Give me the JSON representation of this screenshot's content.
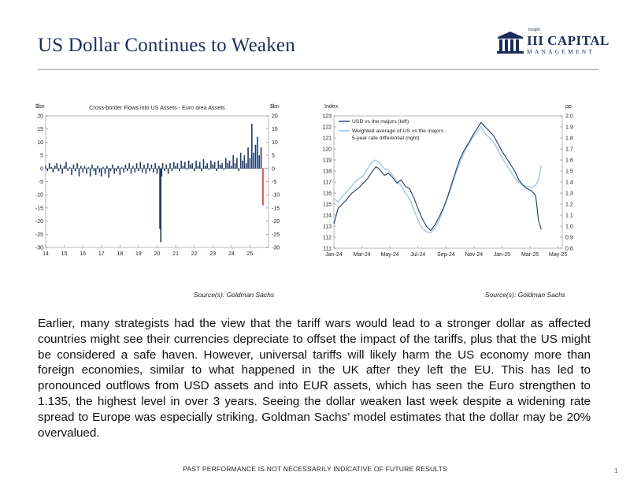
{
  "title": "US Dollar Continues to Weaken",
  "logo": {
    "main": "III CAPITAL",
    "sub": "MANAGEMENT",
    "tiny": "Insight"
  },
  "sources": [
    "Source(s): Goldman Sachs",
    "Source(s): Goldman Sachs"
  ],
  "body_text": "Earlier, many strategists had the view that the tariff wars would lead to a stronger dollar as affected countries might see their currencies depreciate to offset the impact of the tariffs, plus that the US might be considered a safe haven. However, universal tariffs will likely harm the US economy more than foreign economies, similar to what happened in the UK after they left the EU. This has led to pronounced outflows from USD assets and into EUR assets, which has seen the Euro strengthen to 1.135, the highest level in over 3 years. Seeing the dollar weaken last week despite a widening rate spread to Europe was especially striking.  Goldman Sachs’ model estimates that the dollar may be 20% overvalued.",
  "footer": "PAST PERFORMANCE IS NOT NECESSARILY INDICATIVE OF FUTURE RESULTS",
  "page_number": "1",
  "colors": {
    "navy": "#1a2d5a",
    "bar": "#1f3a68",
    "bar_negative_recent": "#e0302c",
    "usd_line": "#1f3a68",
    "rate_line": "#a9cdea"
  },
  "chart_data": [
    {
      "type": "bar",
      "title": "Cross-border Flows into US Assets - Euro area Assets",
      "ylabel_left": "$bn",
      "ylabel_right": "$bn",
      "ylim": [
        -30,
        20
      ],
      "yticks": [
        20,
        15,
        10,
        5,
        0,
        -5,
        -10,
        -15,
        -20,
        -25,
        -30
      ],
      "xlim": [
        14,
        26
      ],
      "xticks": [
        14,
        15,
        16,
        17,
        18,
        19,
        20,
        21,
        22,
        23,
        24,
        25
      ],
      "series": [
        {
          "name": "",
          "color": "#1f3a68",
          "points": [
            [
              14.0,
              1
            ],
            [
              14.1,
              -1
            ],
            [
              14.2,
              2
            ],
            [
              14.3,
              0.5
            ],
            [
              14.4,
              -1.5
            ],
            [
              14.5,
              1
            ],
            [
              14.6,
              2
            ],
            [
              14.7,
              -1
            ],
            [
              14.8,
              1.5
            ],
            [
              14.9,
              -2
            ],
            [
              15.0,
              1
            ],
            [
              15.1,
              2.5
            ],
            [
              15.2,
              -1
            ],
            [
              15.3,
              0.5
            ],
            [
              15.4,
              -2.5
            ],
            [
              15.5,
              1.5
            ],
            [
              15.6,
              -1
            ],
            [
              15.7,
              2
            ],
            [
              15.8,
              -3
            ],
            [
              15.9,
              1
            ],
            [
              16.0,
              -1.5
            ],
            [
              16.1,
              1
            ],
            [
              16.2,
              -2
            ],
            [
              16.3,
              0.5
            ],
            [
              16.4,
              -3
            ],
            [
              16.5,
              1.5
            ],
            [
              16.6,
              -1
            ],
            [
              16.7,
              -2.5
            ],
            [
              16.8,
              1
            ],
            [
              16.9,
              -1.5
            ],
            [
              17.0,
              -3
            ],
            [
              17.1,
              0.5
            ],
            [
              17.2,
              -2
            ],
            [
              17.3,
              1
            ],
            [
              17.4,
              -3.5
            ],
            [
              17.5,
              -1
            ],
            [
              17.6,
              1.5
            ],
            [
              17.7,
              -2
            ],
            [
              17.8,
              -1
            ],
            [
              17.9,
              1
            ],
            [
              18.0,
              -2.5
            ],
            [
              18.1,
              0.5
            ],
            [
              18.2,
              -1.5
            ],
            [
              18.3,
              1.5
            ],
            [
              18.4,
              -1
            ],
            [
              18.5,
              2
            ],
            [
              18.6,
              -2
            ],
            [
              18.7,
              1
            ],
            [
              18.8,
              -1.5
            ],
            [
              18.9,
              2
            ],
            [
              19.0,
              -1
            ],
            [
              19.1,
              2.5
            ],
            [
              19.2,
              -1.5
            ],
            [
              19.3,
              1.5
            ],
            [
              19.4,
              -2
            ],
            [
              19.5,
              2
            ],
            [
              19.6,
              -1
            ],
            [
              19.7,
              1.5
            ],
            [
              19.8,
              -1.5
            ],
            [
              19.9,
              2
            ],
            [
              20.0,
              -2
            ],
            [
              20.1,
              1
            ],
            [
              20.15,
              -23
            ],
            [
              20.2,
              -28
            ],
            [
              20.25,
              -3
            ],
            [
              20.3,
              2
            ],
            [
              20.4,
              -1
            ],
            [
              20.5,
              1.5
            ],
            [
              20.6,
              -2
            ],
            [
              20.7,
              2
            ],
            [
              20.8,
              -1
            ],
            [
              20.9,
              2.5
            ],
            [
              21.0,
              1
            ],
            [
              21.1,
              2
            ],
            [
              21.2,
              -1
            ],
            [
              21.3,
              3
            ],
            [
              21.4,
              1
            ],
            [
              21.5,
              2.5
            ],
            [
              21.6,
              -0.5
            ],
            [
              21.7,
              3
            ],
            [
              21.8,
              1.5
            ],
            [
              21.9,
              2
            ],
            [
              22.0,
              -1
            ],
            [
              22.1,
              3
            ],
            [
              22.2,
              1
            ],
            [
              22.3,
              2.5
            ],
            [
              22.4,
              -1
            ],
            [
              22.5,
              3.5
            ],
            [
              22.6,
              1
            ],
            [
              22.7,
              2
            ],
            [
              22.8,
              -0.5
            ],
            [
              22.9,
              3
            ],
            [
              23.0,
              1.5
            ],
            [
              23.1,
              2.5
            ],
            [
              23.2,
              -1
            ],
            [
              23.3,
              3
            ],
            [
              23.4,
              1.5
            ],
            [
              23.5,
              2
            ],
            [
              23.6,
              -0.5
            ],
            [
              23.7,
              4
            ],
            [
              23.8,
              2
            ],
            [
              23.9,
              3
            ],
            [
              24.0,
              1
            ],
            [
              24.1,
              5
            ],
            [
              24.2,
              2
            ],
            [
              24.3,
              4
            ],
            [
              24.4,
              -1
            ],
            [
              24.5,
              6
            ],
            [
              24.6,
              3
            ],
            [
              24.7,
              5
            ],
            [
              24.8,
              2
            ],
            [
              24.9,
              8
            ],
            [
              25.0,
              4
            ],
            [
              25.1,
              17
            ],
            [
              25.2,
              6
            ],
            [
              25.3,
              9
            ],
            [
              25.4,
              12
            ],
            [
              25.5,
              5
            ],
            [
              25.6,
              8
            ]
          ]
        },
        {
          "name": "",
          "color": "#e0302c",
          "points": [
            [
              25.7,
              -14
            ]
          ]
        }
      ]
    },
    {
      "type": "line",
      "ylabel_left": "Index",
      "ylabel_right": "pp",
      "ylim_left": [
        111,
        123
      ],
      "ylim_right": [
        0.8,
        2.0
      ],
      "yticks_left": [
        123,
        122,
        121,
        120,
        119,
        118,
        117,
        116,
        115,
        114,
        113,
        112,
        111
      ],
      "yticks_right": [
        "2.0",
        "1.9",
        "1.8",
        "1.7",
        "1.6",
        "1.5",
        "1.4",
        "1.3",
        "1.2",
        "1.1",
        "1.0",
        "0.9",
        "0.8"
      ],
      "xticks": [
        "Jan-24",
        "Mar-24",
        "May-24",
        "Jul-24",
        "Sep-24",
        "Nov-24",
        "Jan-25",
        "Mar-25",
        "May-25"
      ],
      "xlim": [
        0,
        16.3
      ],
      "series": [
        {
          "name": "USD vs the majors (left)",
          "axis": "left",
          "color": "#1f3a68",
          "points": [
            [
              0,
              113.2
            ],
            [
              0.3,
              114.6
            ],
            [
              0.6,
              115.0
            ],
            [
              0.9,
              115.4
            ],
            [
              1.2,
              115.9
            ],
            [
              1.5,
              116.2
            ],
            [
              1.8,
              116.5
            ],
            [
              2.1,
              116.9
            ],
            [
              2.4,
              117.3
            ],
            [
              2.7,
              117.9
            ],
            [
              3.0,
              118.4
            ],
            [
              3.3,
              118.1
            ],
            [
              3.6,
              117.6
            ],
            [
              3.9,
              117.8
            ],
            [
              4.2,
              117.4
            ],
            [
              4.5,
              116.9
            ],
            [
              4.8,
              117.2
            ],
            [
              5.1,
              116.6
            ],
            [
              5.4,
              116.4
            ],
            [
              5.7,
              115.6
            ],
            [
              6.0,
              114.6
            ],
            [
              6.3,
              113.7
            ],
            [
              6.6,
              113.0
            ],
            [
              6.9,
              112.6
            ],
            [
              7.2,
              113.1
            ],
            [
              7.5,
              113.8
            ],
            [
              7.8,
              114.6
            ],
            [
              8.1,
              115.6
            ],
            [
              8.4,
              116.8
            ],
            [
              8.7,
              118.0
            ],
            [
              9.0,
              119.1
            ],
            [
              9.3,
              119.9
            ],
            [
              9.6,
              120.5
            ],
            [
              9.9,
              121.2
            ],
            [
              10.2,
              121.8
            ],
            [
              10.5,
              122.4
            ],
            [
              10.8,
              122.0
            ],
            [
              11.1,
              121.6
            ],
            [
              11.4,
              121.2
            ],
            [
              11.7,
              120.5
            ],
            [
              12.0,
              119.8
            ],
            [
              12.3,
              119.2
            ],
            [
              12.6,
              118.6
            ],
            [
              12.9,
              118.0
            ],
            [
              13.2,
              117.2
            ],
            [
              13.5,
              116.7
            ],
            [
              13.8,
              116.4
            ],
            [
              14.1,
              116.2
            ],
            [
              14.4,
              115.8
            ],
            [
              14.6,
              113.5
            ],
            [
              14.8,
              112.7
            ]
          ]
        },
        {
          "name": "Weighted average of US vs the majors 5-year rate differential (right)",
          "axis": "right",
          "color": "#a9cdea",
          "points": [
            [
              0,
              1.25
            ],
            [
              0.3,
              1.22
            ],
            [
              0.6,
              1.27
            ],
            [
              0.9,
              1.31
            ],
            [
              1.2,
              1.35
            ],
            [
              1.5,
              1.4
            ],
            [
              1.8,
              1.43
            ],
            [
              2.1,
              1.46
            ],
            [
              2.4,
              1.52
            ],
            [
              2.7,
              1.58
            ],
            [
              3.0,
              1.6
            ],
            [
              3.3,
              1.57
            ],
            [
              3.6,
              1.52
            ],
            [
              3.9,
              1.51
            ],
            [
              4.2,
              1.46
            ],
            [
              4.5,
              1.4
            ],
            [
              4.8,
              1.37
            ],
            [
              5.1,
              1.3
            ],
            [
              5.4,
              1.25
            ],
            [
              5.7,
              1.15
            ],
            [
              6.0,
              1.06
            ],
            [
              6.3,
              0.98
            ],
            [
              6.6,
              0.95
            ],
            [
              6.9,
              0.94
            ],
            [
              7.2,
              0.98
            ],
            [
              7.5,
              1.05
            ],
            [
              7.8,
              1.15
            ],
            [
              8.1,
              1.25
            ],
            [
              8.4,
              1.36
            ],
            [
              8.7,
              1.48
            ],
            [
              9.0,
              1.58
            ],
            [
              9.3,
              1.67
            ],
            [
              9.6,
              1.74
            ],
            [
              9.9,
              1.8
            ],
            [
              10.2,
              1.85
            ],
            [
              10.5,
              1.9
            ],
            [
              10.8,
              1.84
            ],
            [
              11.1,
              1.8
            ],
            [
              11.4,
              1.76
            ],
            [
              11.7,
              1.69
            ],
            [
              12.0,
              1.62
            ],
            [
              12.3,
              1.56
            ],
            [
              12.6,
              1.5
            ],
            [
              12.9,
              1.44
            ],
            [
              13.2,
              1.4
            ],
            [
              13.5,
              1.37
            ],
            [
              13.8,
              1.36
            ],
            [
              14.1,
              1.35
            ],
            [
              14.4,
              1.37
            ],
            [
              14.6,
              1.42
            ],
            [
              14.8,
              1.55
            ]
          ]
        }
      ]
    }
  ]
}
